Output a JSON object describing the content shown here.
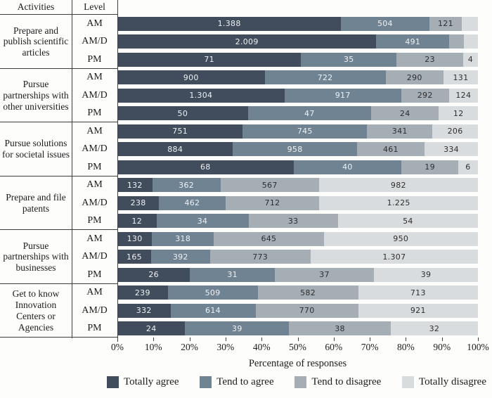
{
  "chart_data": {
    "type": "bar",
    "orientation": "horizontal-stacked-100pct",
    "title": "",
    "xlabel": "Percentage of responses",
    "x_ticks": [
      "0%",
      "10%",
      "20%",
      "30%",
      "40%",
      "50%",
      "60%",
      "70%",
      "80%",
      "90%",
      "100%"
    ],
    "xlim": [
      0,
      100
    ],
    "col_headers": {
      "activities": "Activities",
      "level": "Level"
    },
    "legend_position": "bottom",
    "legend": [
      {
        "name": "Totally agree",
        "color": "#414d5d",
        "label_color": "#eff1f3"
      },
      {
        "name": "Tend to agree",
        "color": "#708393",
        "label_color": "#eff1f3"
      },
      {
        "name": "Tend to disagree",
        "color": "#a5aeb5",
        "label_color": "#2e2e2e"
      },
      {
        "name": "Totally disagree",
        "color": "#d9dcde",
        "label_color": "#2e2e2e"
      }
    ],
    "groups": [
      {
        "activity": "Prepare and publish scientific articles",
        "rows": [
          {
            "level": "AM",
            "segments": [
              {
                "label": "1.388",
                "pct": 65.4
              },
              {
                "label": "504",
                "pct": 23.7
              },
              {
                "label": "121",
                "pct": 5.7
              },
              {
                "label": "",
                "pct": 5.2
              }
            ]
          },
          {
            "level": "AM/D",
            "segments": [
              {
                "label": "2.009",
                "pct": 73.2
              },
              {
                "label": "491",
                "pct": 17.9
              },
              {
                "label": "",
                "pct": 4.6
              },
              {
                "label": "",
                "pct": 4.3
              }
            ]
          },
          {
            "level": "PM",
            "segments": [
              {
                "label": "71",
                "pct": 53.4
              },
              {
                "label": "35",
                "pct": 26.3
              },
              {
                "label": "23",
                "pct": 17.3
              },
              {
                "label": "4",
                "pct": 3.0
              }
            ]
          }
        ]
      },
      {
        "activity": "Pursue partnerships with other universities",
        "rows": [
          {
            "level": "AM",
            "segments": [
              {
                "label": "900",
                "pct": 44.1
              },
              {
                "label": "722",
                "pct": 35.3
              },
              {
                "label": "290",
                "pct": 14.2
              },
              {
                "label": "131",
                "pct": 6.4
              }
            ]
          },
          {
            "level": "AM/D",
            "segments": [
              {
                "label": "1.304",
                "pct": 49.4
              },
              {
                "label": "917",
                "pct": 34.8
              },
              {
                "label": "292",
                "pct": 11.1
              },
              {
                "label": "124",
                "pct": 4.7
              }
            ]
          },
          {
            "level": "PM",
            "segments": [
              {
                "label": "50",
                "pct": 37.6
              },
              {
                "label": "47",
                "pct": 35.3
              },
              {
                "label": "24",
                "pct": 18.0
              },
              {
                "label": "12",
                "pct": 9.0
              }
            ]
          }
        ]
      },
      {
        "activity": "Pursue solutions for societal issues",
        "rows": [
          {
            "level": "AM",
            "segments": [
              {
                "label": "751",
                "pct": 36.8
              },
              {
                "label": "745",
                "pct": 36.5
              },
              {
                "label": "341",
                "pct": 16.7
              },
              {
                "label": "206",
                "pct": 10.1
              }
            ]
          },
          {
            "level": "AM/D",
            "segments": [
              {
                "label": "884",
                "pct": 33.5
              },
              {
                "label": "958",
                "pct": 36.3
              },
              {
                "label": "461",
                "pct": 17.5
              },
              {
                "label": "334",
                "pct": 12.7
              }
            ]
          },
          {
            "level": "PM",
            "segments": [
              {
                "label": "68",
                "pct": 51.1
              },
              {
                "label": "40",
                "pct": 30.1
              },
              {
                "label": "19",
                "pct": 14.3
              },
              {
                "label": "6",
                "pct": 4.5
              }
            ]
          }
        ]
      },
      {
        "activity": "Prepare and file patents",
        "rows": [
          {
            "level": "AM",
            "segments": [
              {
                "label": "132",
                "pct": 6.5
              },
              {
                "label": "362",
                "pct": 17.7
              },
              {
                "label": "567",
                "pct": 27.8
              },
              {
                "label": "982",
                "pct": 48.1
              }
            ]
          },
          {
            "level": "AM/D",
            "segments": [
              {
                "label": "238",
                "pct": 9.0
              },
              {
                "label": "462",
                "pct": 17.5
              },
              {
                "label": "712",
                "pct": 27.0
              },
              {
                "label": "1.225",
                "pct": 46.5
              }
            ]
          },
          {
            "level": "PM",
            "segments": [
              {
                "label": "12",
                "pct": 9.0
              },
              {
                "label": "34",
                "pct": 25.6
              },
              {
                "label": "33",
                "pct": 24.8
              },
              {
                "label": "54",
                "pct": 40.6
              }
            ]
          }
        ]
      },
      {
        "activity": "Pursue partnerships with businesses",
        "rows": [
          {
            "level": "AM",
            "segments": [
              {
                "label": "130",
                "pct": 6.4
              },
              {
                "label": "318",
                "pct": 15.6
              },
              {
                "label": "645",
                "pct": 31.6
              },
              {
                "label": "950",
                "pct": 46.5
              }
            ]
          },
          {
            "level": "AM/D",
            "segments": [
              {
                "label": "165",
                "pct": 6.3
              },
              {
                "label": "392",
                "pct": 14.9
              },
              {
                "label": "773",
                "pct": 29.3
              },
              {
                "label": "1.307",
                "pct": 49.6
              }
            ]
          },
          {
            "level": "PM",
            "segments": [
              {
                "label": "26",
                "pct": 19.5
              },
              {
                "label": "31",
                "pct": 23.3
              },
              {
                "label": "37",
                "pct": 27.8
              },
              {
                "label": "39",
                "pct": 29.3
              }
            ]
          }
        ]
      },
      {
        "activity": "Get to know Innovation Centers or Agencies",
        "rows": [
          {
            "level": "AM",
            "segments": [
              {
                "label": "239",
                "pct": 11.7
              },
              {
                "label": "509",
                "pct": 24.9
              },
              {
                "label": "582",
                "pct": 28.5
              },
              {
                "label": "713",
                "pct": 34.9
              }
            ]
          },
          {
            "level": "AM/D",
            "segments": [
              {
                "label": "332",
                "pct": 12.6
              },
              {
                "label": "614",
                "pct": 23.3
              },
              {
                "label": "770",
                "pct": 29.2
              },
              {
                "label": "921",
                "pct": 34.9
              }
            ]
          },
          {
            "level": "PM",
            "segments": [
              {
                "label": "24",
                "pct": 18.0
              },
              {
                "label": "39",
                "pct": 29.3
              },
              {
                "label": "38",
                "pct": 28.6
              },
              {
                "label": "32",
                "pct": 24.1
              }
            ]
          }
        ]
      }
    ]
  }
}
